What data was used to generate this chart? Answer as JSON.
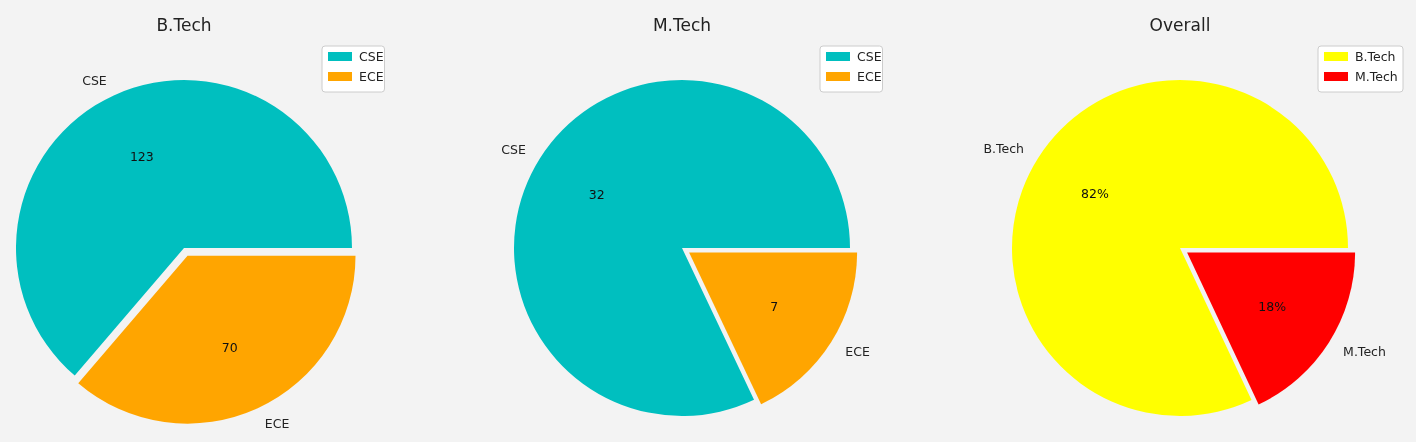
{
  "chart_data": [
    {
      "type": "pie",
      "title": "B.Tech",
      "categories": [
        "CSE",
        "ECE"
      ],
      "values": [
        123,
        70
      ],
      "value_labels": [
        "123",
        "70"
      ],
      "colors": [
        "#00bfbf",
        "#ffa500"
      ],
      "legend": "top right"
    },
    {
      "type": "pie",
      "title": "M.Tech",
      "categories": [
        "CSE",
        "ECE"
      ],
      "values": [
        32,
        7
      ],
      "value_labels": [
        "32",
        "7"
      ],
      "colors": [
        "#00bfbf",
        "#ffa500"
      ],
      "legend": "top right"
    },
    {
      "type": "pie",
      "title": "Overall",
      "categories": [
        "B.Tech",
        "M.Tech"
      ],
      "values": [
        82,
        18
      ],
      "value_labels": [
        "82%",
        "18%"
      ],
      "colors": [
        "#ffff00",
        "#ff0000"
      ],
      "legend": "top right"
    }
  ]
}
